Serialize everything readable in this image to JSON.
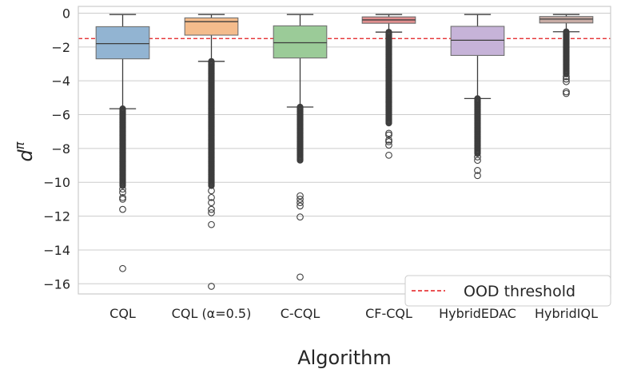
{
  "chart_data": {
    "type": "box",
    "title": "",
    "xlabel": "Algorithm",
    "ylabel_base": "d",
    "ylabel_sup": "π",
    "ylim": [
      -16.6,
      0.4
    ],
    "yticks": [
      0,
      -2,
      -4,
      -6,
      -8,
      -10,
      -12,
      -14,
      -16
    ],
    "ytick_labels": [
      "0",
      "−2",
      "−4",
      "−6",
      "−8",
      "−10",
      "−12",
      "−14",
      "−16"
    ],
    "grid": true,
    "threshold": {
      "value": -1.5,
      "label": "OOD threshold",
      "color": "#e31a1c"
    },
    "legend_position": "lower-right",
    "categories": [
      "CQL",
      "CQL (α=0.5)",
      "C-CQL",
      "CF-CQL",
      "HybridEDAC",
      "HybridIQL"
    ],
    "boxes": [
      {
        "name": "CQL",
        "color": "#92b4d2",
        "whislo": -5.65,
        "q1": -2.7,
        "med": -1.8,
        "q3": -0.8,
        "whishi": -0.08,
        "flier_range": [
          -10.2,
          -5.65
        ],
        "extra_fliers": [
          -10.4,
          -10.6,
          -10.9,
          -11.0,
          -11.6,
          -15.1
        ]
      },
      {
        "name": "CQL (α=0.5)",
        "color": "#f4bc8c",
        "whislo": -2.85,
        "q1": -1.3,
        "med": -0.5,
        "q3": -0.28,
        "whishi": -0.08,
        "flier_range": [
          -10.2,
          -2.85
        ],
        "extra_fliers": [
          -10.5,
          -10.9,
          -11.2,
          -11.6,
          -11.8,
          -12.5,
          -16.15
        ]
      },
      {
        "name": "C-CQL",
        "color": "#9bcb98",
        "whislo": -5.55,
        "q1": -2.65,
        "med": -1.75,
        "q3": -0.75,
        "whishi": -0.08,
        "flier_range": [
          -8.7,
          -5.55
        ],
        "extra_fliers": [
          -10.8,
          -11.0,
          -11.2,
          -11.4,
          -12.05,
          -15.6
        ]
      },
      {
        "name": "CF-CQL",
        "color": "#e08e8e",
        "whislo": -1.12,
        "q1": -0.6,
        "med": -0.4,
        "q3": -0.22,
        "whishi": -0.08,
        "flier_range": [
          -6.5,
          -1.12
        ],
        "extra_fliers": [
          -7.1,
          -7.2,
          -7.5,
          -7.6,
          -7.8,
          -8.4
        ]
      },
      {
        "name": "HybridEDAC",
        "color": "#c6b3d8",
        "whislo": -5.05,
        "q1": -2.5,
        "med": -1.6,
        "q3": -0.78,
        "whishi": -0.08,
        "flier_range": [
          -8.3,
          -5.05
        ],
        "extra_fliers": [
          -8.5,
          -8.7,
          -9.3,
          -9.6
        ]
      },
      {
        "name": "HybridIQL",
        "color": "#c8aca5",
        "whislo": -1.1,
        "q1": -0.58,
        "med": -0.35,
        "q3": -0.2,
        "whishi": -0.08,
        "flier_range": [
          -3.6,
          -1.1
        ],
        "extra_fliers": [
          -3.75,
          -3.9,
          -4.05,
          -4.65,
          -4.75
        ]
      }
    ]
  }
}
